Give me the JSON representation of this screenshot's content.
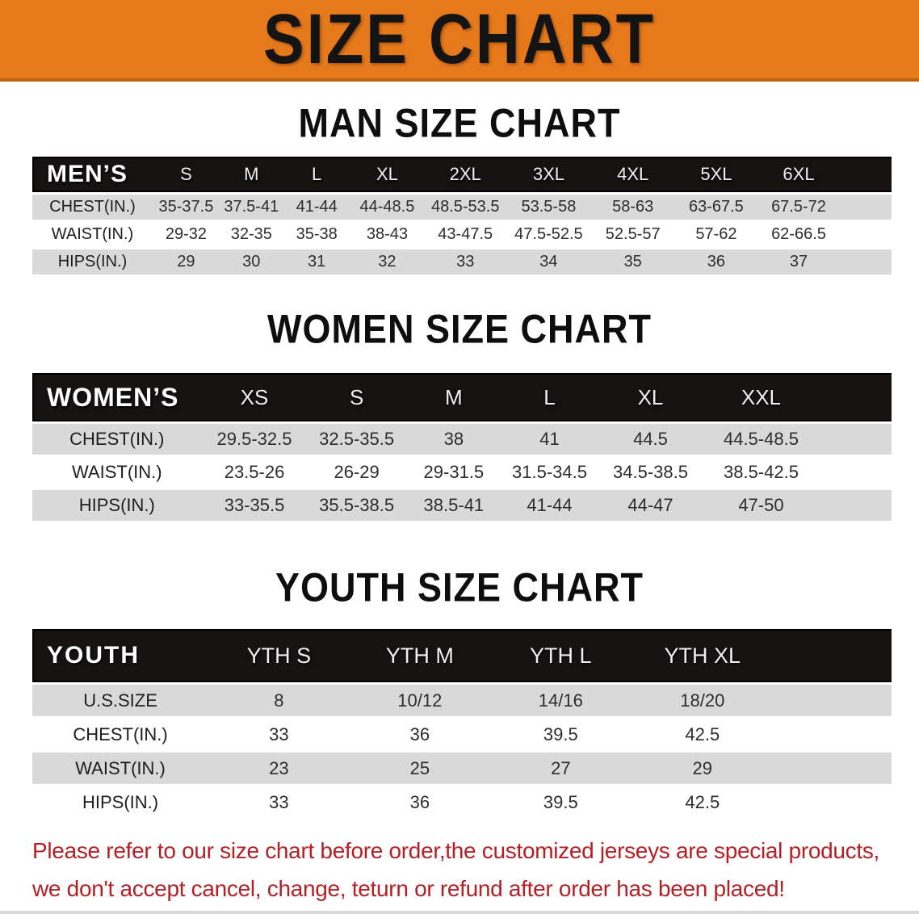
{
  "banner": {
    "title": "SIZE CHART"
  },
  "sections": [
    {
      "title": "MAN SIZE CHART",
      "group_label": "MEN’S",
      "columns": [
        "S",
        "M",
        "L",
        "XL",
        "2XL",
        "3XL",
        "4XL",
        "5XL",
        "6XL"
      ],
      "rows": [
        {
          "label": "CHEST(IN.)",
          "values": [
            "35-37.5",
            "37.5-41",
            "41-44",
            "44-48.5",
            "48.5-53.5",
            "53.5-58",
            "58-63",
            "63-67.5",
            "67.5-72"
          ]
        },
        {
          "label": "WAIST(IN.)",
          "values": [
            "29-32",
            "32-35",
            "35-38",
            "38-43",
            "43-47.5",
            "47.5-52.5",
            "52.5-57",
            "57-62",
            "62-66.5"
          ]
        },
        {
          "label": "HIPS(IN.)",
          "values": [
            "29",
            "30",
            "31",
            "32",
            "33",
            "34",
            "35",
            "36",
            "37"
          ]
        }
      ]
    },
    {
      "title": "WOMEN SIZE CHART",
      "group_label": "WOMEN’S",
      "columns": [
        "XS",
        "S",
        "M",
        "L",
        "XL",
        "XXL"
      ],
      "rows": [
        {
          "label": "CHEST(IN.)",
          "values": [
            "29.5-32.5",
            "32.5-35.5",
            "38",
            "41",
            "44.5",
            "44.5-48.5"
          ]
        },
        {
          "label": "WAIST(IN.)",
          "values": [
            "23.5-26",
            "26-29",
            "29-31.5",
            "31.5-34.5",
            "34.5-38.5",
            "38.5-42.5"
          ]
        },
        {
          "label": "HIPS(IN.)",
          "values": [
            "33-35.5",
            "35.5-38.5",
            "38.5-41",
            "41-44",
            "44-47",
            "47-50"
          ]
        }
      ]
    },
    {
      "title": "YOUTH SIZE CHART",
      "group_label": "YOUTH",
      "columns": [
        "YTH S",
        "YTH M",
        "YTH L",
        "YTH XL"
      ],
      "rows": [
        {
          "label": "U.S.SIZE",
          "values": [
            "8",
            "10/12",
            "14/16",
            "18/20"
          ]
        },
        {
          "label": "CHEST(IN.)",
          "values": [
            "33",
            "36",
            "39.5",
            "42.5"
          ]
        },
        {
          "label": "WAIST(IN.)",
          "values": [
            "23",
            "25",
            "27",
            "29"
          ]
        },
        {
          "label": "HIPS(IN.)",
          "values": [
            "33",
            "36",
            "39.5",
            "42.5"
          ]
        }
      ]
    }
  ],
  "disclaimer": {
    "lines": [
      "Please refer to our size chart before order,the customized jerseys are special products,",
      "we don't accept cancel, change, teturn or refund after order has been placed!"
    ]
  },
  "colors": {
    "banner_bg": "#e6791c",
    "banner_edge": "#c2620f",
    "band_bg": "#171212",
    "row_stripe": "#d9d9d9",
    "disclaimer_red": "#b32025"
  }
}
